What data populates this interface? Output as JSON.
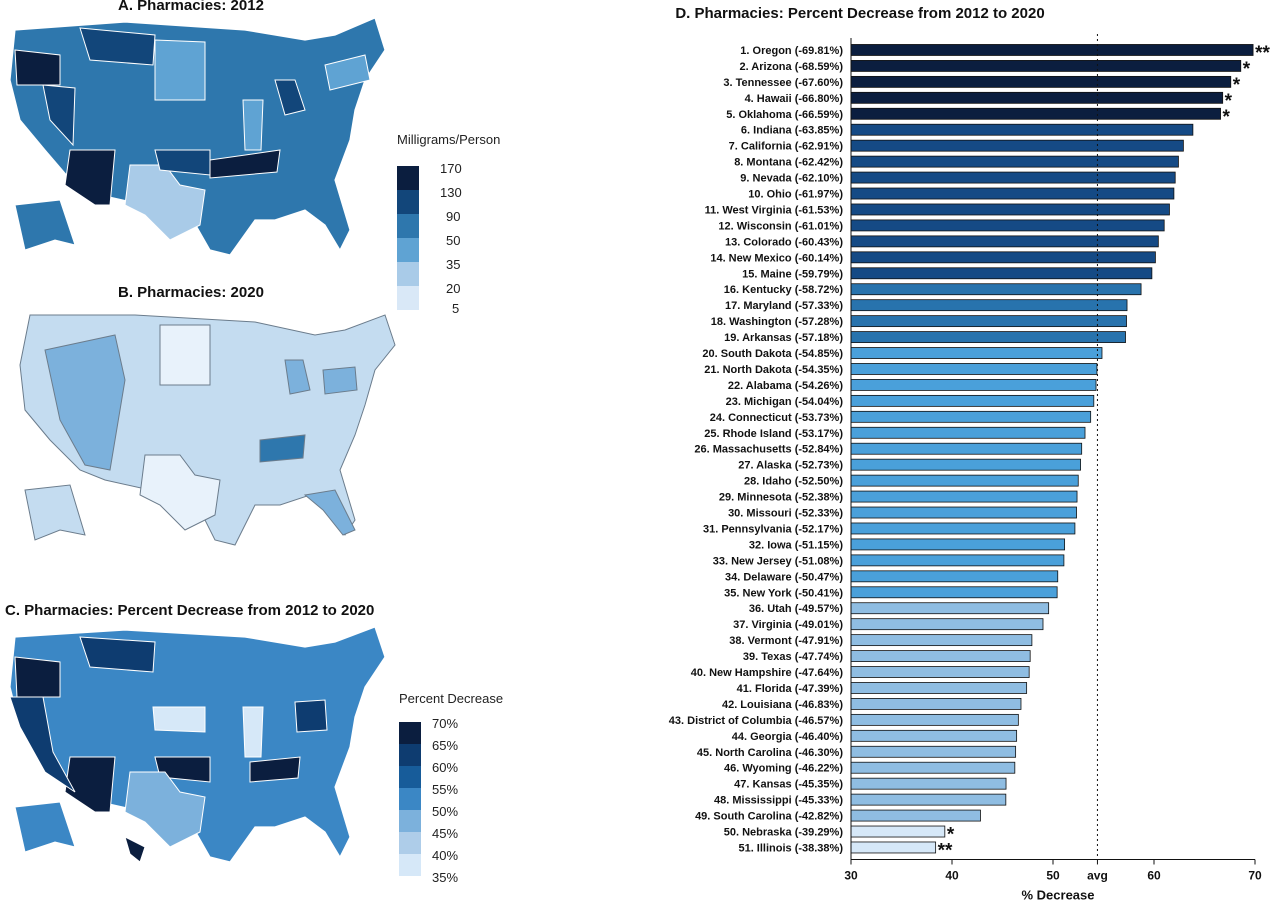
{
  "panels": {
    "a_title": "A. Pharmacies: 2012",
    "b_title": "B. Pharmacies: 2020",
    "c_title": "C. Pharmacies: Percent Decrease from 2012 to 2020"
  },
  "legend_a": {
    "title": "Milligrams/Person",
    "ticks": [
      "170",
      "130",
      "90",
      "50",
      "35",
      "20",
      "5"
    ],
    "colors": [
      "#0b1e3f",
      "#12467a",
      "#2e77ad",
      "#5fa3d3",
      "#a9cbe8",
      "#d9e8f7"
    ]
  },
  "legend_c": {
    "title": "Percent Decrease",
    "ticks": [
      "70%",
      "65%",
      "60%",
      "55%",
      "50%",
      "45%",
      "40%",
      "35%"
    ],
    "colors": [
      "#0b1e3f",
      "#0e3c70",
      "#175c9a",
      "#3b87c5",
      "#7cb1dc",
      "#aecde9",
      "#d6e8f8"
    ]
  },
  "chart_data": {
    "type": "bar",
    "orientation": "horizontal",
    "title": "D. Pharmacies: Percent Decrease from 2012 to 2020",
    "xlabel": "% Decrease",
    "xlim": [
      30,
      70
    ],
    "xticks": [
      "30",
      "40",
      "50",
      "avg",
      "60",
      "70"
    ],
    "avg_label": "avg",
    "avg_value": 54.4,
    "categories": [
      "1. Oregon (-69.81%)",
      "2. Arizona (-68.59%)",
      "3. Tennessee (-67.60%)",
      "4. Hawaii (-66.80%)",
      "5. Oklahoma (-66.59%)",
      "6. Indiana (-63.85%)",
      "7. California (-62.91%)",
      "8. Montana (-62.42%)",
      "9. Nevada (-62.10%)",
      "10. Ohio (-61.97%)",
      "11. West Virginia (-61.53%)",
      "12. Wisconsin (-61.01%)",
      "13. Colorado (-60.43%)",
      "14. New Mexico (-60.14%)",
      "15. Maine (-59.79%)",
      "16. Kentucky (-58.72%)",
      "17. Maryland (-57.33%)",
      "18. Washington (-57.28%)",
      "19. Arkansas (-57.18%)",
      "20. South Dakota (-54.85%)",
      "21. North Dakota (-54.35%)",
      "22. Alabama (-54.26%)",
      "23. Michigan (-54.04%)",
      "24. Connecticut (-53.73%)",
      "25. Rhode Island (-53.17%)",
      "26. Massachusetts (-52.84%)",
      "27. Alaska (-52.73%)",
      "28. Idaho (-52.50%)",
      "29. Minnesota (-52.38%)",
      "30. Missouri (-52.33%)",
      "31. Pennsylvania (-52.17%)",
      "32. Iowa (-51.15%)",
      "33. New Jersey (-51.08%)",
      "34. Delaware (-50.47%)",
      "35. New York (-50.41%)",
      "36. Utah (-49.57%)",
      "37. Virginia (-49.01%)",
      "38. Vermont (-47.91%)",
      "39. Texas (-47.74%)",
      "40. New Hampshire (-47.64%)",
      "41. Florida (-47.39%)",
      "42. Louisiana (-46.83%)",
      "43. District of Columbia (-46.57%)",
      "44. Georgia (-46.40%)",
      "45. North Carolina (-46.30%)",
      "46. Wyoming (-46.22%)",
      "47. Kansas (-45.35%)",
      "48. Mississippi (-45.33%)",
      "49. South Carolina (-42.82%)",
      "50. Nebraska (-39.29%)",
      "51. Illinois (-38.38%)"
    ],
    "values": [
      69.81,
      68.59,
      67.6,
      66.8,
      66.59,
      63.85,
      62.91,
      62.42,
      62.1,
      61.97,
      61.53,
      61.01,
      60.43,
      60.14,
      59.79,
      58.72,
      57.33,
      57.28,
      57.18,
      54.85,
      54.35,
      54.26,
      54.04,
      53.73,
      53.17,
      52.84,
      52.73,
      52.5,
      52.38,
      52.33,
      52.17,
      51.15,
      51.08,
      50.47,
      50.41,
      49.57,
      49.01,
      47.91,
      47.74,
      47.64,
      47.39,
      46.83,
      46.57,
      46.4,
      46.3,
      46.22,
      45.35,
      45.33,
      42.82,
      39.29,
      38.38
    ],
    "annotations": [
      "**",
      "*",
      "*",
      "*",
      "*",
      "",
      "",
      "",
      "",
      "",
      "",
      "",
      "",
      "",
      "",
      "",
      "",
      "",
      "",
      "",
      "",
      "",
      "",
      "",
      "",
      "",
      "",
      "",
      "",
      "",
      "",
      "",
      "",
      "",
      "",
      "",
      "",
      "",
      "",
      "",
      "",
      "",
      "",
      "",
      "",
      "",
      "",
      "",
      "",
      "*",
      "**"
    ],
    "colors": {
      "darkest": "#0b1e3f",
      "dark": "#154a85",
      "mid": "#2873ad",
      "light": "#4aa0da",
      "lighter": "#8fbde2",
      "lightest": "#d6e8f8"
    }
  }
}
